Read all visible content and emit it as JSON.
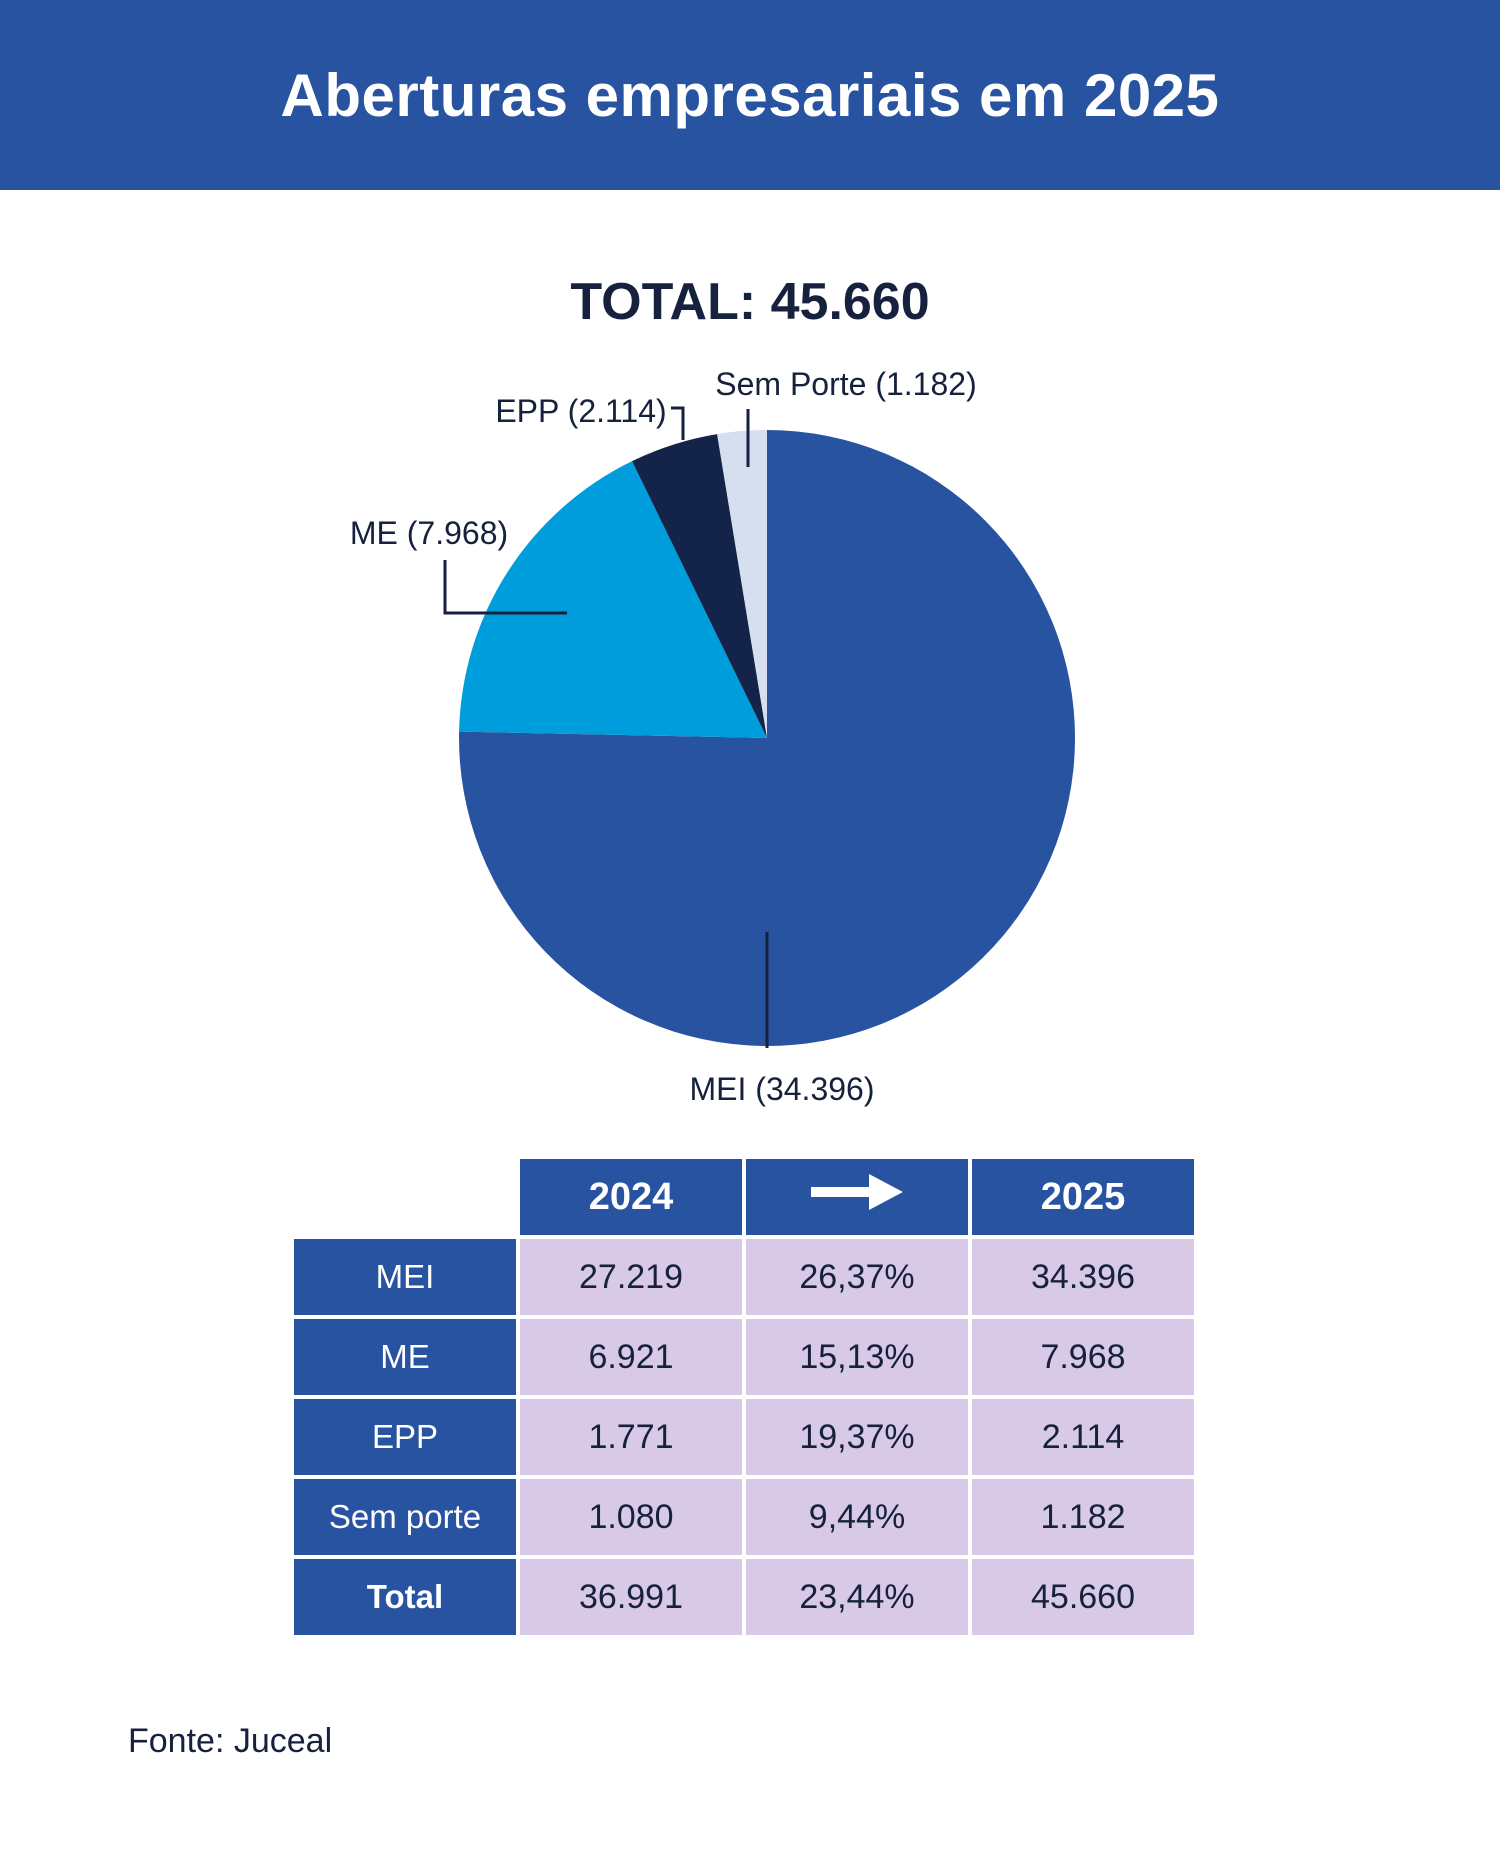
{
  "header": {
    "title": "Aberturas empresariais em 2025"
  },
  "chart_data": {
    "type": "pie",
    "title": "TOTAL: 45.660",
    "slices": [
      {
        "name": "MEI",
        "value": 34396,
        "label": "MEI (34.396)",
        "color": "#2853a1"
      },
      {
        "name": "ME",
        "value": 7968,
        "label": "ME (7.968)",
        "color": "#009ddc"
      },
      {
        "name": "EPP",
        "value": 2114,
        "label": "EPP (2.114)",
        "color": "#14234a"
      },
      {
        "name": "Sem Porte",
        "value": 1182,
        "label": "Sem Porte (1.182)",
        "color": "#d6dff0"
      }
    ]
  },
  "table": {
    "header": {
      "col1": "2024",
      "col2_icon": "right-arrow-icon",
      "col3": "2025"
    },
    "rows": [
      {
        "label": "MEI",
        "v2024": "27.219",
        "change": "26,37%",
        "v2025": "34.396"
      },
      {
        "label": "ME",
        "v2024": "6.921",
        "change": "15,13%",
        "v2025": "7.968"
      },
      {
        "label": "EPP",
        "v2024": "1.771",
        "change": "19,37%",
        "v2025": "2.114"
      },
      {
        "label": "Sem porte",
        "v2024": "1.080",
        "change": "9,44%",
        "v2025": "1.182"
      },
      {
        "label": "Total",
        "v2024": "36.991",
        "change": "23,44%",
        "v2025": "45.660"
      }
    ]
  },
  "source": "Fonte: Juceal",
  "colors": {
    "brand": "#2853a1",
    "cell": "#d8c9e6",
    "text": "#16213d"
  }
}
